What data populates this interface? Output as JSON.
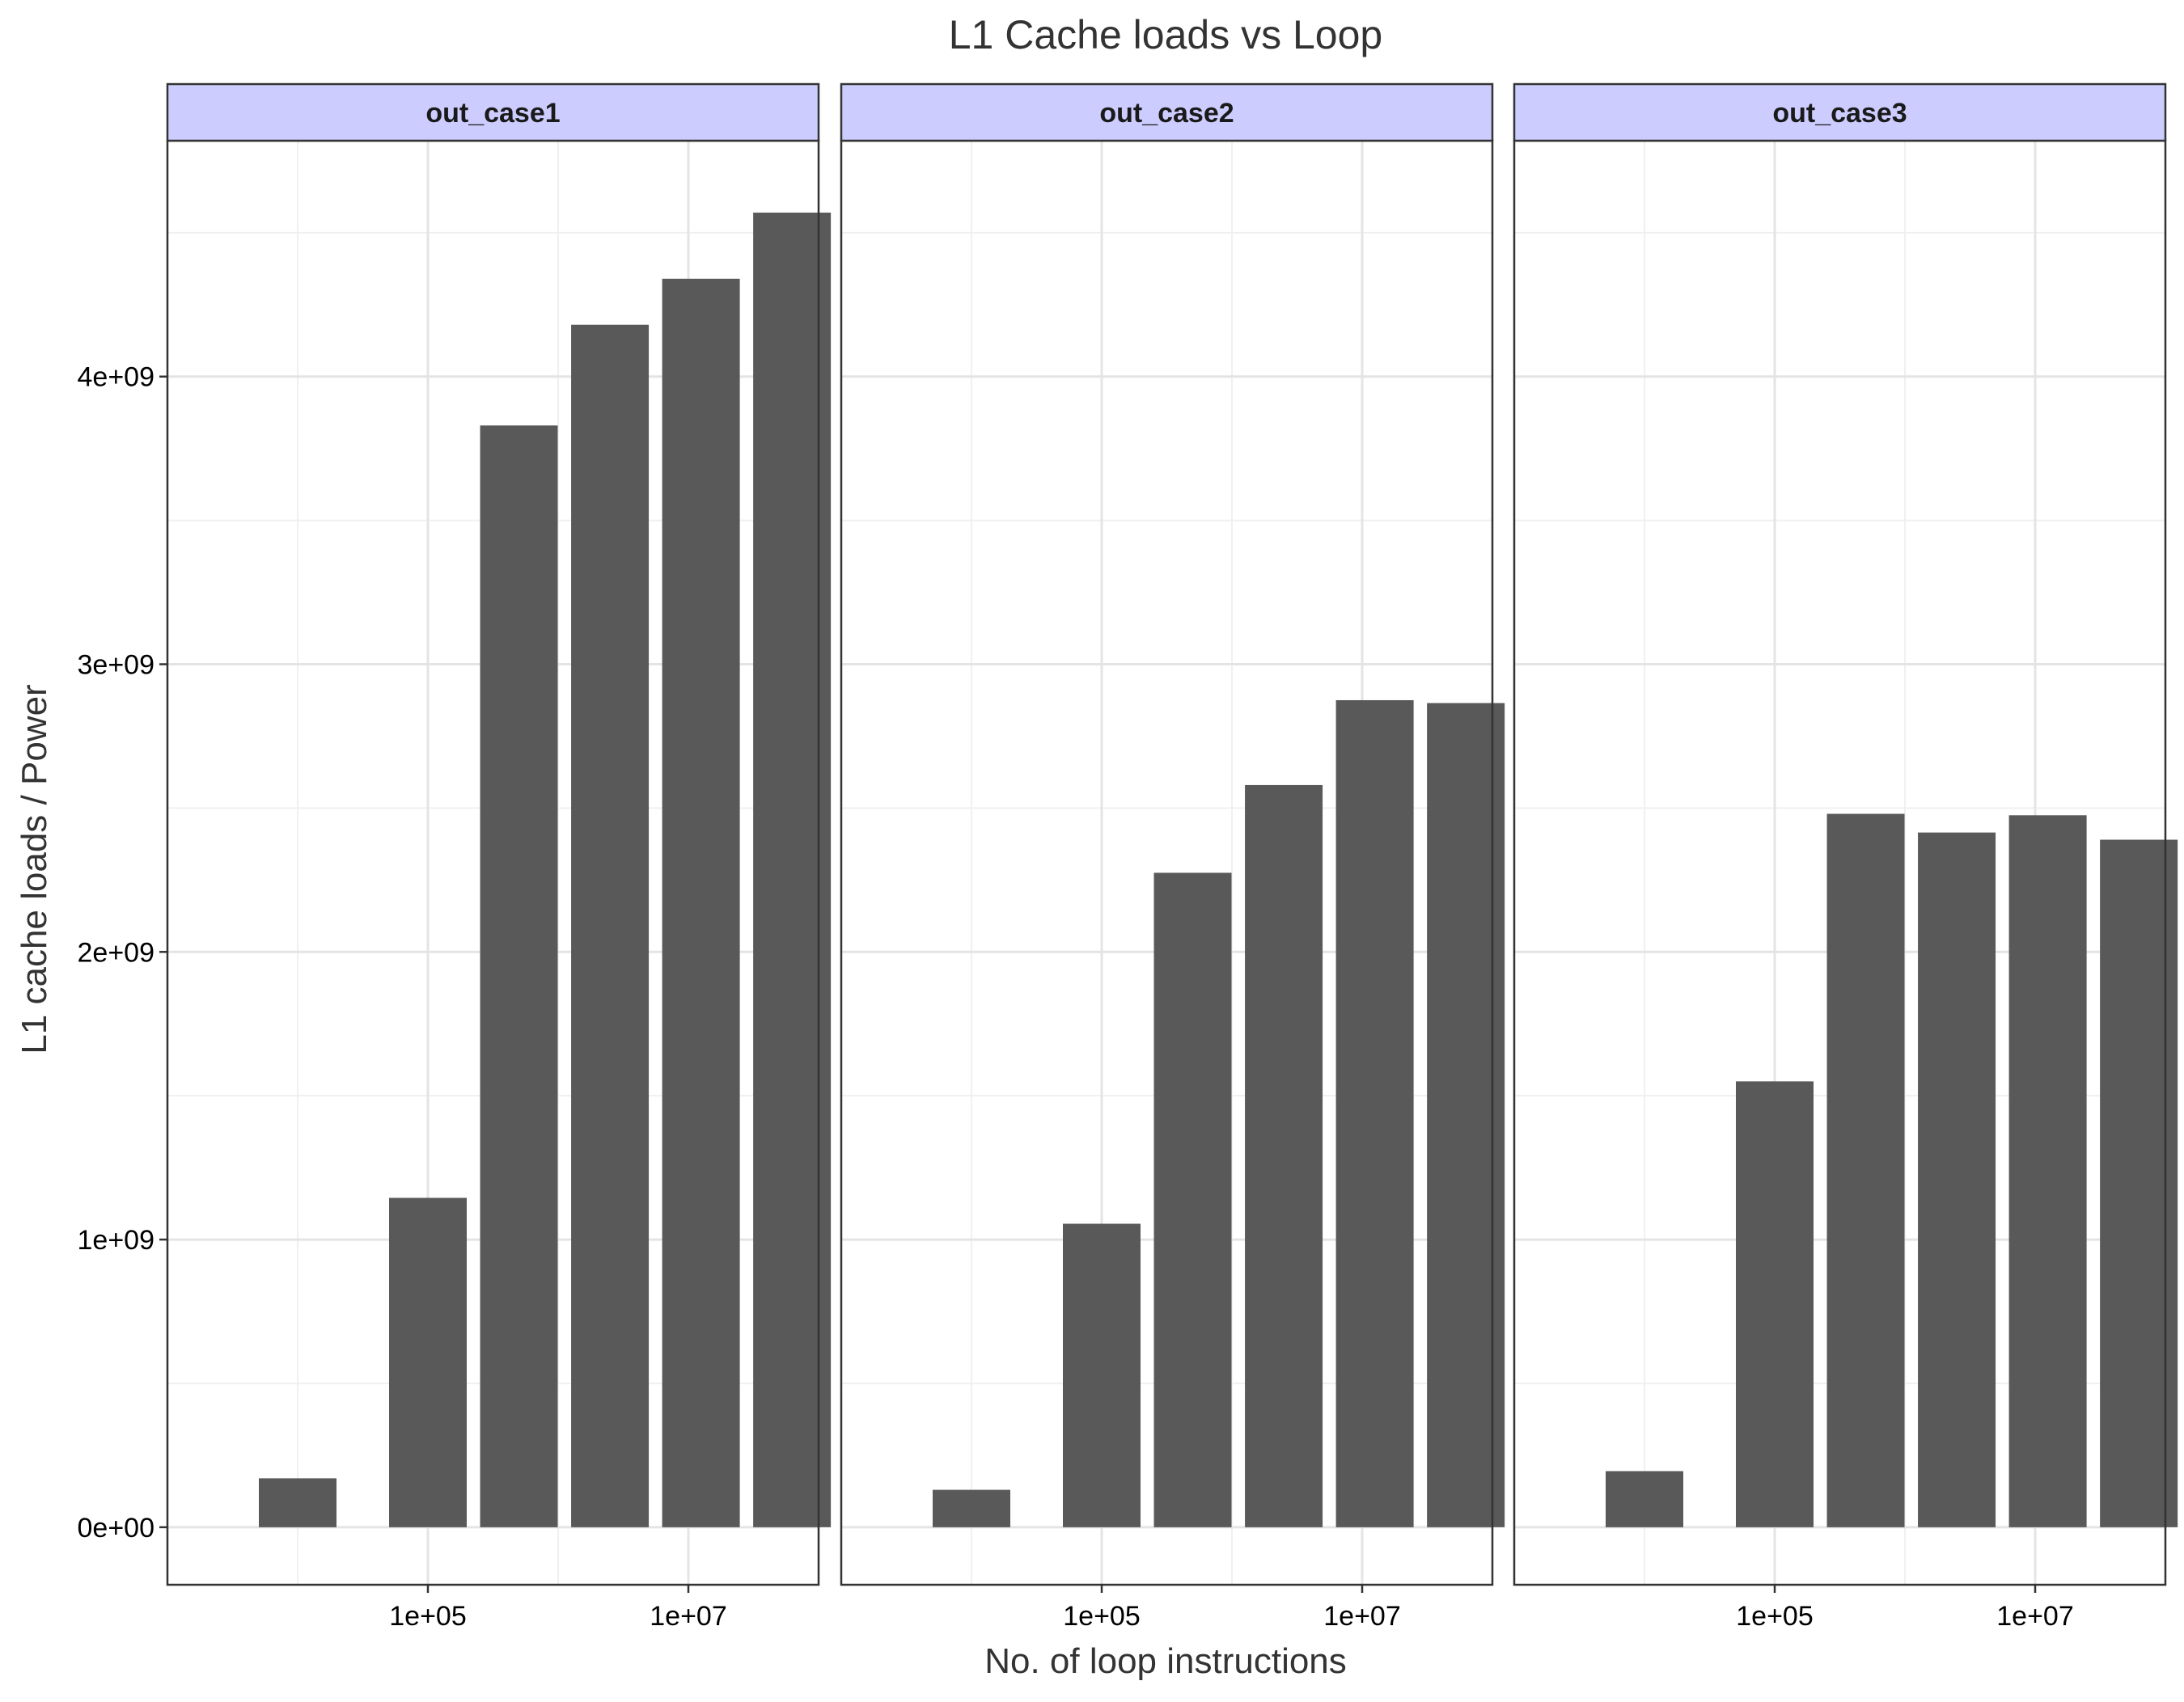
{
  "chart_data": {
    "type": "bar",
    "title": "L1 Cache loads vs Loop",
    "xlabel": "No. of loop instructions",
    "ylabel": "L1 cache loads / Power",
    "x_scale": "log10",
    "x_ticks": [
      100000,
      10000000
    ],
    "x_tick_labels": [
      "1e+05",
      "1e+07"
    ],
    "xlim": [
      1000,
      100000000
    ],
    "y_ticks": [
      0,
      1000000000,
      2000000000,
      3000000000,
      4000000000
    ],
    "y_tick_labels": [
      "0e+00",
      "1e+09",
      "2e+09",
      "3e+09",
      "4e+09"
    ],
    "ylim": [
      -200000000,
      4820000000
    ],
    "grid": true,
    "bar_color": "#595959",
    "strip_fill": "#ccccff",
    "facets": [
      {
        "name": "out_case1",
        "x": [
          10000,
          100000,
          500000,
          2500000,
          12500000,
          62500000
        ],
        "values": [
          170000000,
          1145000000,
          3830000000,
          4180000000,
          4340000000,
          4570000000
        ]
      },
      {
        "name": "out_case2",
        "x": [
          10000,
          100000,
          500000,
          2500000,
          12500000,
          62500000
        ],
        "values": [
          130000000,
          1055000000,
          2275000000,
          2580000000,
          2875000000,
          2865000000
        ]
      },
      {
        "name": "out_case3",
        "x": [
          10000,
          100000,
          500000,
          2500000,
          12500000,
          62500000
        ],
        "values": [
          195000000,
          1550000000,
          2480000000,
          2415000000,
          2475000000,
          2390000000
        ]
      }
    ]
  }
}
